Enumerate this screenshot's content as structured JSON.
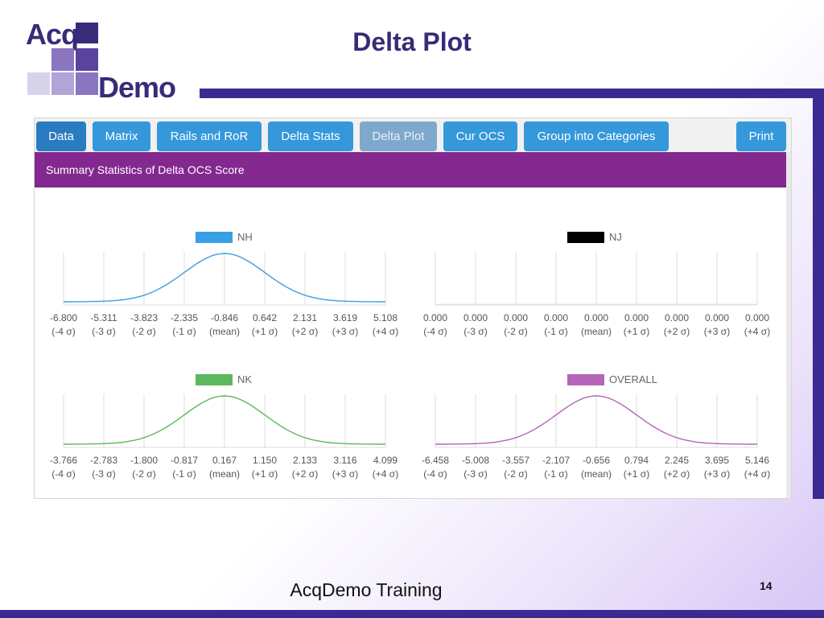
{
  "slide": {
    "title": "Delta Plot",
    "footer": "AcqDemo Training",
    "page_number": "14"
  },
  "logo": {
    "top_text": "Acq",
    "bottom_text": "Demo"
  },
  "colors": {
    "accent": "#3c2a93",
    "purple_bar": "#83288f",
    "tab": "#3498db"
  },
  "toolbar": {
    "tabs": [
      {
        "label": "Data",
        "state": "active"
      },
      {
        "label": "Matrix",
        "state": "normal"
      },
      {
        "label": "Rails and RoR",
        "state": "normal"
      },
      {
        "label": "Delta Stats",
        "state": "normal"
      },
      {
        "label": "Delta Plot",
        "state": "disabled"
      },
      {
        "label": "Cur OCS",
        "state": "normal"
      },
      {
        "label": "Group into Categories",
        "state": "normal"
      },
      {
        "label": "Print",
        "state": "normal"
      }
    ]
  },
  "section": {
    "header": "Summary Statistics of Delta OCS Score"
  },
  "chart_data": [
    {
      "type": "line",
      "legend": "NH",
      "color": "#39a0e6",
      "x": [
        -6.8,
        -5.311,
        -3.823,
        -2.335,
        -0.846,
        0.642,
        2.131,
        3.619,
        5.108
      ],
      "tick_labels": [
        "-6.800",
        "-5.311",
        "-3.823",
        "-2.335",
        "-0.846",
        "0.642",
        "2.131",
        "3.619",
        "5.108"
      ],
      "sigma_labels": [
        "(-4 σ)",
        "(-3 σ)",
        "(-2 σ)",
        "(-1 σ)",
        "(mean)",
        "(+1 σ)",
        "(+2 σ)",
        "(+3 σ)",
        "(+4 σ)"
      ],
      "y_relative": [
        0.0003,
        0.011,
        0.135,
        0.607,
        1.0,
        0.607,
        0.135,
        0.011,
        0.0003
      ],
      "grid": true
    },
    {
      "type": "line",
      "legend": "NJ",
      "color": "#000000",
      "x": [
        0.0,
        0.0,
        0.0,
        0.0,
        0.0,
        0.0,
        0.0,
        0.0,
        0.0
      ],
      "tick_labels": [
        "0.000",
        "0.000",
        "0.000",
        "0.000",
        "0.000",
        "0.000",
        "0.000",
        "0.000",
        "0.000"
      ],
      "sigma_labels": [
        "(-4 σ)",
        "(-3 σ)",
        "(-2 σ)",
        "(-1 σ)",
        "(mean)",
        "(+1 σ)",
        "(+2 σ)",
        "(+3 σ)",
        "(+4 σ)"
      ],
      "y_relative": [],
      "grid": true
    },
    {
      "type": "line",
      "legend": "NK",
      "color": "#5cb85c",
      "x": [
        -3.766,
        -2.783,
        -1.8,
        -0.817,
        0.167,
        1.15,
        2.133,
        3.116,
        4.099
      ],
      "tick_labels": [
        "-3.766",
        "-2.783",
        "-1.800",
        "-0.817",
        "0.167",
        "1.150",
        "2.133",
        "3.116",
        "4.099"
      ],
      "sigma_labels": [
        "(-4 σ)",
        "(-3 σ)",
        "(-2 σ)",
        "(-1 σ)",
        "(mean)",
        "(+1 σ)",
        "(+2 σ)",
        "(+3 σ)",
        "(+4 σ)"
      ],
      "y_relative": [
        0.0003,
        0.011,
        0.135,
        0.607,
        1.0,
        0.607,
        0.135,
        0.011,
        0.0003
      ],
      "grid": true
    },
    {
      "type": "line",
      "legend": "OVERALL",
      "color": "#b565b8",
      "x": [
        -6.458,
        -5.008,
        -3.557,
        -2.107,
        -0.656,
        0.794,
        2.245,
        3.695,
        5.146
      ],
      "tick_labels": [
        "-6.458",
        "-5.008",
        "-3.557",
        "-2.107",
        "-0.656",
        "0.794",
        "2.245",
        "3.695",
        "5.146"
      ],
      "sigma_labels": [
        "(-4 σ)",
        "(-3 σ)",
        "(-2 σ)",
        "(-1 σ)",
        "(mean)",
        "(+1 σ)",
        "(+2 σ)",
        "(+3 σ)",
        "(+4 σ)"
      ],
      "y_relative": [
        0.0003,
        0.011,
        0.135,
        0.607,
        1.0,
        0.607,
        0.135,
        0.011,
        0.0003
      ],
      "grid": true
    }
  ]
}
